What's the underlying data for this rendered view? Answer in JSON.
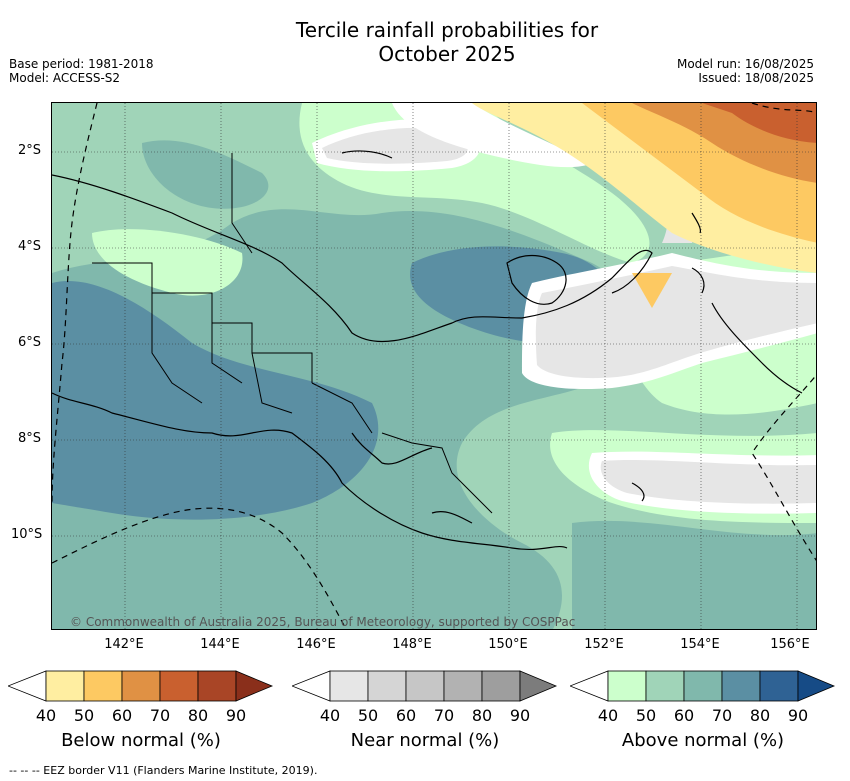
{
  "header": {
    "title_line1": "Tercile rainfall probabilities for",
    "title_line2": "October 2025",
    "base_period": "Base period: 1981-2018",
    "model": "Model: ACCESS-S2",
    "model_run": "Model run: 16/08/2025",
    "issued": "Issued: 18/08/2025"
  },
  "map": {
    "copyright": "© Commonwealth of Australia 2025, Bureau of Meteorology, supported by COSPPac",
    "lat_labels": [
      "2°S",
      "4°S",
      "6°S",
      "8°S",
      "10°S"
    ],
    "lon_labels": [
      "142°E",
      "144°E",
      "146°E",
      "148°E",
      "150°E",
      "152°E",
      "154°E",
      "156°E"
    ]
  },
  "colorbars": [
    {
      "title": "Below normal (%)",
      "ticks": [
        "40",
        "50",
        "60",
        "70",
        "80",
        "90"
      ],
      "colors": [
        "#ffffff",
        "#ffeea1",
        "#fdc962",
        "#e09144",
        "#c9602f",
        "#a94526",
        "#8a2f1b"
      ]
    },
    {
      "title": "Near normal (%)",
      "ticks": [
        "40",
        "50",
        "60",
        "70",
        "80",
        "90"
      ],
      "colors": [
        "#ffffff",
        "#e6e6e6",
        "#d5d5d5",
        "#c6c6c6",
        "#b2b2b2",
        "#9e9e9e",
        "#7c7c7c"
      ]
    },
    {
      "title": "Above normal (%)",
      "ticks": [
        "40",
        "50",
        "60",
        "70",
        "80",
        "90"
      ],
      "colors": [
        "#ffffff",
        "#ccffcc",
        "#a0d4b8",
        "#80b8ac",
        "#5b8fa3",
        "#2f6294",
        "#164b86"
      ]
    }
  ],
  "footer": "-- -- -- EEZ border V11 (Flanders Marine Institute, 2019)."
}
